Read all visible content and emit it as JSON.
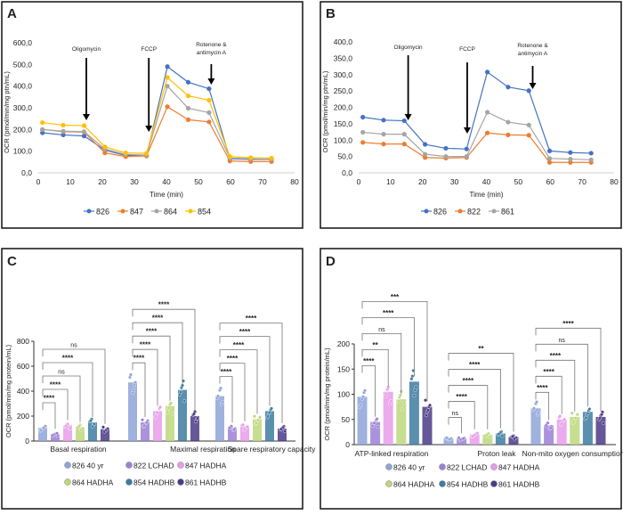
{
  "chart_data": [
    {
      "panel": "A",
      "type": "line",
      "xlabel": "Time (min)",
      "ylabel": "OCR (pmol/min/mg ptn/mL)",
      "xlim": [
        0,
        80
      ],
      "xticks": [
        0,
        10,
        20,
        30,
        40,
        50,
        60,
        70,
        80
      ],
      "ylim": [
        0,
        600
      ],
      "yticks": [
        "0,0",
        "100,0",
        "200,0",
        "300,0",
        "400,0",
        "500,0",
        "600,0"
      ],
      "legend": "bottom",
      "x": [
        1.3,
        7.8,
        14.3,
        20.8,
        27.3,
        33.8,
        40.3,
        46.8,
        53.3,
        59.8,
        66.3,
        72.8
      ],
      "series": [
        {
          "name": "826",
          "color": "#4472c4",
          "values": [
            185,
            175,
            170,
            105,
            80,
            78,
            490,
            418,
            388,
            65,
            62,
            62
          ]
        },
        {
          "name": "847",
          "color": "#ed7d31",
          "values": [
            200,
            190,
            188,
            92,
            75,
            78,
            305,
            245,
            235,
            55,
            52,
            52
          ]
        },
        {
          "name": "864",
          "color": "#a5a5a5",
          "values": [
            200,
            192,
            190,
            110,
            85,
            82,
            400,
            298,
            278,
            68,
            65,
            63
          ]
        },
        {
          "name": "854",
          "color": "#ffc000",
          "values": [
            232,
            220,
            218,
            120,
            92,
            90,
            440,
            355,
            335,
            75,
            70,
            68
          ]
        }
      ],
      "annotations": [
        {
          "lines": [
            "Oligomycin"
          ],
          "time": 15
        },
        {
          "lines": [
            "FCCP"
          ],
          "time": 34.5
        },
        {
          "lines": [
            "Rotenone &",
            "antimycin A"
          ],
          "time": 54
        }
      ]
    },
    {
      "panel": "B",
      "type": "line",
      "xlabel": "Time (min)",
      "ylabel": "OCR (pmol/min/mg ptn/mL)",
      "xlim": [
        0,
        80
      ],
      "xticks": [
        0,
        10,
        20,
        30,
        40,
        50,
        60,
        70,
        80
      ],
      "ylim": [
        0,
        400
      ],
      "yticks": [
        "0,0",
        "50,0",
        "100,0",
        "150,0",
        "200,0",
        "250,0",
        "300,0",
        "350,0",
        "400,0"
      ],
      "legend": "bottom",
      "x": [
        1.3,
        7.8,
        14.3,
        20.8,
        27.3,
        33.8,
        40.3,
        46.8,
        53.3,
        59.8,
        66.3,
        72.8
      ],
      "series": [
        {
          "name": "826",
          "color": "#4472c4",
          "values": [
            170,
            161,
            159,
            87,
            75,
            73,
            308,
            262,
            251,
            67,
            62,
            60
          ]
        },
        {
          "name": "822",
          "color": "#ed7d31",
          "values": [
            93,
            88,
            88,
            47,
            45,
            47,
            122,
            116,
            115,
            32,
            32,
            32
          ]
        },
        {
          "name": "861",
          "color": "#a5a5a5",
          "values": [
            124,
            118,
            118,
            57,
            50,
            50,
            185,
            155,
            146,
            44,
            42,
            40
          ]
        }
      ],
      "annotations": [
        {
          "lines": [
            "Oligomycin"
          ],
          "time": 15.5
        },
        {
          "lines": [
            "FCCP"
          ],
          "time": 34
        },
        {
          "lines": [
            "Rotenone &",
            "antimycin A"
          ],
          "time": 54.5
        }
      ]
    },
    {
      "panel": "C",
      "type": "bar",
      "ylabel": "OCR (pmol/min/mg protein/mL)",
      "ylim": [
        0,
        800
      ],
      "yticks": [
        "0",
        "200",
        "400",
        "600",
        "800"
      ],
      "legend": "bottom",
      "categories": [
        "Basal respiration",
        "Maximal respiration",
        "Spare respiratory capacity"
      ],
      "series": [
        {
          "name": "826 40 yr",
          "color": "#8ea5d8",
          "values": [
            105,
            470,
            360
          ]
        },
        {
          "name": "822 LCHAD",
          "color": "#9c80d6",
          "values": [
            55,
            150,
            105
          ]
        },
        {
          "name": "847 HADHA",
          "color": "#e79ce9",
          "values": [
            125,
            240,
            115
          ]
        },
        {
          "name": "864 HADHA",
          "color": "#bdd77b",
          "values": [
            110,
            280,
            175
          ]
        },
        {
          "name": "854 HADHB",
          "color": "#3d7ba0",
          "values": [
            150,
            410,
            240
          ]
        },
        {
          "name": "861 HADHB",
          "color": "#4a3a86",
          "values": [
            95,
            200,
            100
          ]
        }
      ],
      "significance": [
        [
          "****",
          "****",
          "ns",
          "****",
          "ns"
        ],
        [
          "****",
          "****",
          "****",
          "****",
          "****"
        ],
        [
          "****",
          "****",
          "****",
          "****",
          "****"
        ]
      ]
    },
    {
      "panel": "D",
      "type": "bar",
      "ylabel": "OCR (pmol/min/mg protein/mL)",
      "ylim": [
        0,
        200
      ],
      "yticks": [
        "0",
        "50",
        "100",
        "150",
        "200"
      ],
      "legend": "bottom",
      "categories": [
        "ATP-linked respiration",
        "Proton leak",
        "Non-mito oxygen consumption"
      ],
      "series": [
        {
          "name": "826 40 yr",
          "color": "#8ea5d8",
          "values": [
            95,
            12,
            72
          ]
        },
        {
          "name": "822 LCHAD",
          "color": "#9c80d6",
          "values": [
            45,
            12,
            38
          ]
        },
        {
          "name": "847 HADHA",
          "color": "#e79ce9",
          "values": [
            105,
            20,
            50
          ]
        },
        {
          "name": "864 HADHA",
          "color": "#bdd77b",
          "values": [
            90,
            20,
            55
          ]
        },
        {
          "name": "854 HADHB",
          "color": "#3d7ba0",
          "values": [
            125,
            22,
            65
          ]
        },
        {
          "name": "861 HADHB",
          "color": "#4a3a86",
          "values": [
            75,
            15,
            55
          ]
        }
      ],
      "significance": [
        [
          "****",
          "**",
          "ns",
          "****",
          "***"
        ],
        [
          "ns",
          "****",
          "****",
          "****",
          "**"
        ],
        [
          "****",
          "****",
          "****",
          "ns",
          "****"
        ]
      ]
    }
  ]
}
